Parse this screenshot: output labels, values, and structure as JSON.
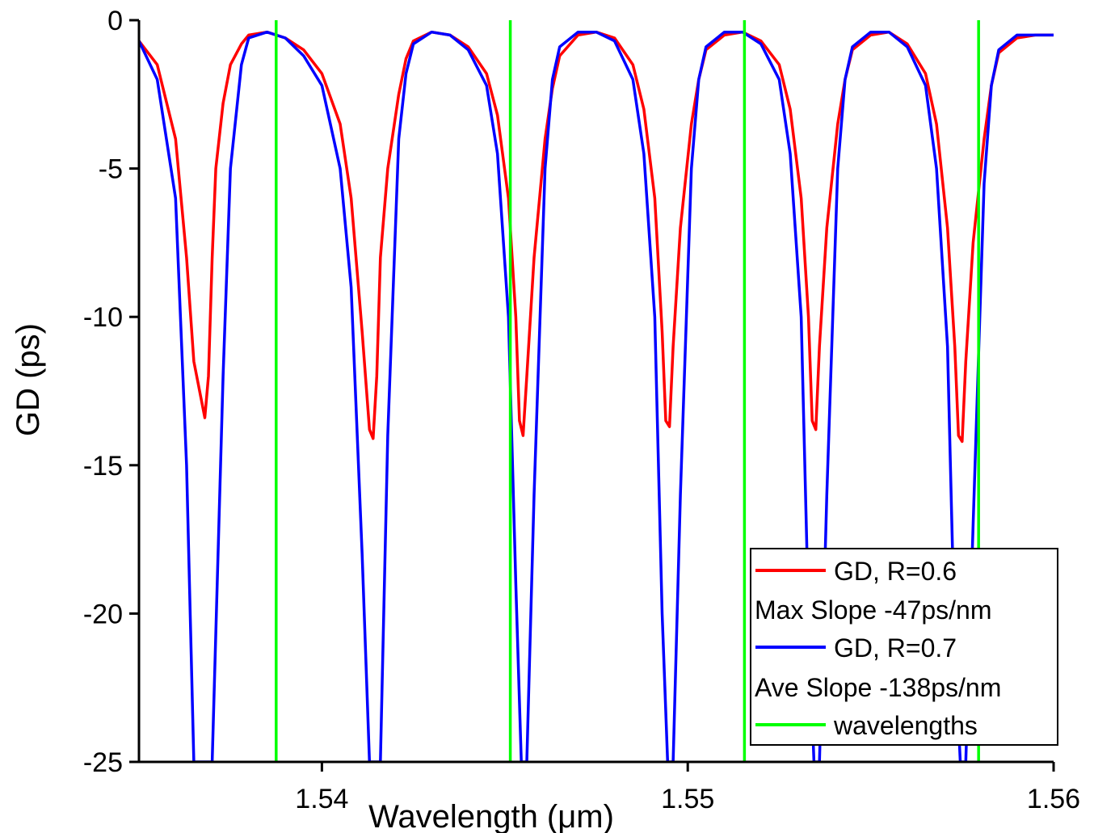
{
  "chart_data": {
    "type": "line",
    "title": "",
    "xlabel": "Wavelength (μm)",
    "ylabel": "GD (ps)",
    "xlim": [
      1.535,
      1.56
    ],
    "ylim": [
      -25,
      0
    ],
    "xticks": [
      1.54,
      1.55,
      1.56
    ],
    "xtick_labels": [
      "1.54",
      "1.55",
      "1.56"
    ],
    "yticks": [
      0,
      -5,
      -10,
      -15,
      -20,
      -25
    ],
    "ytick_labels": [
      "0",
      "-5",
      "-10",
      "-15",
      "-20",
      "-25"
    ],
    "grid": false,
    "legend_position": "bottom-right",
    "series": [
      {
        "name": "GD, R=0.6",
        "color": "#ff0000",
        "x": [
          1.535,
          1.5355,
          1.536,
          1.5363,
          1.5365,
          1.5368,
          1.5369,
          1.537,
          1.5371,
          1.5373,
          1.5375,
          1.5378,
          1.538,
          1.5385,
          1.539,
          1.5395,
          1.54,
          1.5405,
          1.5408,
          1.5411,
          1.5413,
          1.5414,
          1.5415,
          1.5416,
          1.5418,
          1.5421,
          1.5423,
          1.5425,
          1.543,
          1.5435,
          1.544,
          1.5445,
          1.5448,
          1.5451,
          1.5453,
          1.5454,
          1.5455,
          1.5456,
          1.5458,
          1.5461,
          1.5463,
          1.5465,
          1.547,
          1.5475,
          1.548,
          1.5485,
          1.5488,
          1.5491,
          1.5493,
          1.5494,
          1.5495,
          1.5496,
          1.5498,
          1.5501,
          1.5503,
          1.5505,
          1.551,
          1.5515,
          1.552,
          1.5525,
          1.5528,
          1.5531,
          1.5533,
          1.5534,
          1.5535,
          1.5536,
          1.5538,
          1.5541,
          1.5543,
          1.5545,
          1.555,
          1.5555,
          1.556,
          1.5565,
          1.5568,
          1.5571,
          1.5573,
          1.5574,
          1.5575,
          1.5576,
          1.5578,
          1.5581,
          1.5583,
          1.5585,
          1.559,
          1.5595,
          1.56
        ],
        "y": [
          -0.7,
          -1.5,
          -4.0,
          -8.0,
          -11.5,
          -13.4,
          -12.0,
          -8.0,
          -5.0,
          -2.8,
          -1.5,
          -0.8,
          -0.5,
          -0.4,
          -0.6,
          -1.0,
          -1.8,
          -3.5,
          -6.0,
          -10.5,
          -13.8,
          -14.1,
          -12.0,
          -8.0,
          -5.0,
          -2.5,
          -1.3,
          -0.7,
          -0.4,
          -0.5,
          -0.9,
          -1.8,
          -3.2,
          -6.0,
          -10.0,
          -13.5,
          -14.0,
          -12.0,
          -8.0,
          -4.0,
          -2.3,
          -1.2,
          -0.5,
          -0.4,
          -0.6,
          -1.5,
          -3.0,
          -6.0,
          -10.5,
          -13.5,
          -13.7,
          -11.0,
          -7.0,
          -3.5,
          -2.0,
          -1.0,
          -0.5,
          -0.4,
          -0.7,
          -1.5,
          -3.0,
          -6.0,
          -10.0,
          -13.5,
          -13.8,
          -11.0,
          -7.0,
          -3.5,
          -2.0,
          -1.0,
          -0.5,
          -0.4,
          -0.8,
          -1.8,
          -3.5,
          -7.0,
          -11.0,
          -14.0,
          -14.2,
          -11.5,
          -7.5,
          -4.0,
          -2.2,
          -1.1,
          -0.6,
          -0.5,
          -0.5
        ]
      },
      {
        "name": "GD, R=0.7",
        "color": "#0000ff",
        "x": [
          1.535,
          1.5355,
          1.536,
          1.5363,
          1.5365,
          1.5367,
          1.53685,
          1.537,
          1.5373,
          1.5375,
          1.5378,
          1.538,
          1.5385,
          1.539,
          1.5395,
          1.54,
          1.5405,
          1.5408,
          1.5411,
          1.5413,
          1.54145,
          1.5416,
          1.5418,
          1.5421,
          1.5423,
          1.5425,
          1.543,
          1.5435,
          1.544,
          1.5445,
          1.5448,
          1.5451,
          1.5453,
          1.54545,
          1.5456,
          1.5458,
          1.5461,
          1.5463,
          1.5465,
          1.547,
          1.5475,
          1.548,
          1.5485,
          1.5488,
          1.5491,
          1.5493,
          1.54945,
          1.5496,
          1.5498,
          1.5501,
          1.5503,
          1.5505,
          1.551,
          1.5515,
          1.552,
          1.5525,
          1.5528,
          1.5531,
          1.5533,
          1.55345,
          1.5536,
          1.5538,
          1.5541,
          1.5543,
          1.5545,
          1.555,
          1.5555,
          1.556,
          1.5565,
          1.5568,
          1.5571,
          1.5573,
          1.55745,
          1.5576,
          1.5578,
          1.5581,
          1.5583,
          1.5585,
          1.559,
          1.5595,
          1.56
        ],
        "y": [
          -0.7,
          -2.0,
          -6.0,
          -15.0,
          -25.0,
          -25.0,
          -25.0,
          -25.0,
          -12.0,
          -5.0,
          -1.5,
          -0.6,
          -0.4,
          -0.6,
          -1.2,
          -2.2,
          -5.0,
          -9.0,
          -18.0,
          -25.0,
          -25.0,
          -25.0,
          -14.0,
          -4.0,
          -1.8,
          -0.8,
          -0.4,
          -0.5,
          -1.0,
          -2.2,
          -4.5,
          -10.0,
          -19.0,
          -25.0,
          -25.0,
          -16.0,
          -5.0,
          -2.0,
          -0.9,
          -0.4,
          -0.4,
          -0.7,
          -2.0,
          -4.5,
          -10.0,
          -20.0,
          -25.0,
          -25.0,
          -16.0,
          -5.0,
          -2.0,
          -0.9,
          -0.4,
          -0.4,
          -0.8,
          -2.0,
          -4.5,
          -10.0,
          -20.0,
          -25.0,
          -25.0,
          -16.0,
          -5.0,
          -2.0,
          -0.9,
          -0.4,
          -0.4,
          -0.9,
          -2.2,
          -5.0,
          -11.0,
          -21.0,
          -25.0,
          -25.0,
          -17.0,
          -5.5,
          -2.2,
          -1.0,
          -0.5,
          -0.5,
          -0.5
        ]
      },
      {
        "name": "wavelengths",
        "color": "#00ff00",
        "vertical_lines_x": [
          1.53875,
          1.54515,
          1.55155,
          1.55795
        ]
      }
    ],
    "legend_entries": [
      {
        "type": "line",
        "text": "GD, R=0.6",
        "color": "#ff0000"
      },
      {
        "type": "text",
        "text": "Max Slope -47ps/nm"
      },
      {
        "type": "line",
        "text": "GD, R=0.7",
        "color": "#0000ff"
      },
      {
        "type": "text",
        "text": "Ave Slope -138ps/nm"
      },
      {
        "type": "line",
        "text": "wavelengths",
        "color": "#00ff00"
      }
    ]
  }
}
